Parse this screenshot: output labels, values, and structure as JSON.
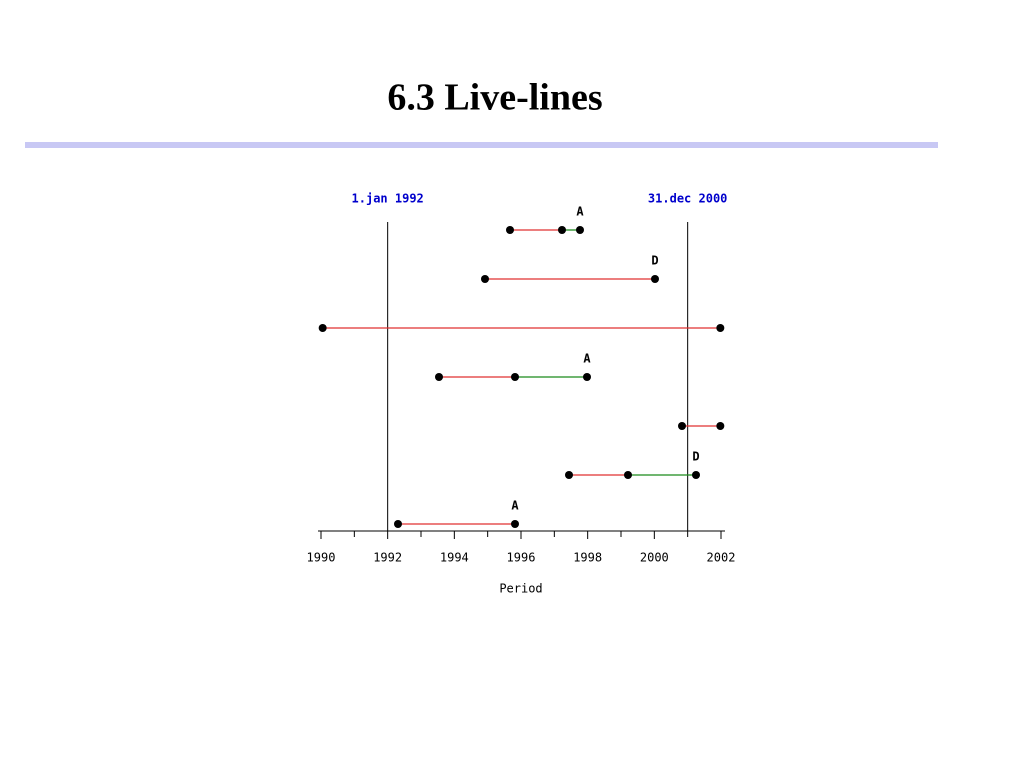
{
  "chart_data": {
    "type": "live-lines",
    "title": "6.3 Live-lines",
    "xlabel": "Period",
    "xlim": [
      1990,
      2002
    ],
    "xticks": [
      1990,
      1992,
      1994,
      1996,
      1998,
      2000,
      2002
    ],
    "xminor": [
      1991,
      1993,
      1995,
      1997,
      1999,
      2001
    ],
    "reference_lines": [
      {
        "value": 1992,
        "label": "1.jan 1992"
      },
      {
        "value": 2001,
        "label": "31.dec 2000"
      }
    ],
    "reference_label_color": "#0000cc",
    "segment_colors": [
      "#e03030",
      "#1a8a1a"
    ],
    "point_color": "#000000",
    "lines": [
      {
        "start": 1995.67,
        "switch": 1997.23,
        "end": 1997.77,
        "label": "A"
      },
      {
        "start": 1994.92,
        "switch": null,
        "end": 2000.02,
        "label": "D"
      },
      {
        "start": 1990.05,
        "switch": null,
        "end": 2001.98
      },
      {
        "start": 1993.54,
        "switch": 1995.82,
        "end": 1997.98,
        "label": "A"
      },
      {
        "start": 2000.83,
        "switch": null,
        "end": 2001.98
      },
      {
        "start": 1997.44,
        "switch": 1999.21,
        "end": 2001.25,
        "label": "D"
      },
      {
        "start": 1992.31,
        "switch": null,
        "end": 1995.82,
        "label": "A"
      }
    ]
  }
}
